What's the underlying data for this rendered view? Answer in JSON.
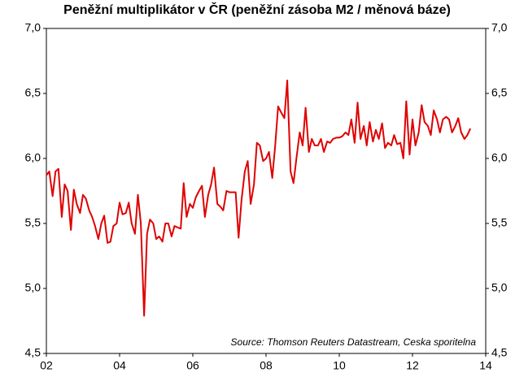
{
  "chart_data": {
    "type": "line",
    "title": "Peněžní multiplikátor v ČR (peněžní zásoba M2 / měnová báze)",
    "annotation": "Source: Thomson Reuters Datastream, Ceska sporitelna",
    "x": [
      2002,
      2002.08,
      2002.17,
      2002.25,
      2002.33,
      2002.42,
      2002.5,
      2002.58,
      2002.67,
      2002.75,
      2002.83,
      2002.92,
      2003,
      2003.08,
      2003.17,
      2003.25,
      2003.33,
      2003.42,
      2003.5,
      2003.58,
      2003.67,
      2003.75,
      2003.83,
      2003.92,
      2004,
      2004.08,
      2004.17,
      2004.25,
      2004.33,
      2004.42,
      2004.5,
      2004.58,
      2004.67,
      2004.75,
      2004.83,
      2004.92,
      2005,
      2005.08,
      2005.17,
      2005.25,
      2005.33,
      2005.42,
      2005.5,
      2005.58,
      2005.67,
      2005.75,
      2005.83,
      2005.92,
      2006,
      2006.08,
      2006.17,
      2006.25,
      2006.33,
      2006.42,
      2006.5,
      2006.58,
      2006.67,
      2006.75,
      2006.83,
      2006.92,
      2007,
      2007.08,
      2007.17,
      2007.25,
      2007.33,
      2007.42,
      2007.5,
      2007.58,
      2007.67,
      2007.75,
      2007.83,
      2007.92,
      2008,
      2008.08,
      2008.17,
      2008.25,
      2008.33,
      2008.42,
      2008.5,
      2008.58,
      2008.67,
      2008.75,
      2008.83,
      2008.92,
      2009,
      2009.08,
      2009.17,
      2009.25,
      2009.33,
      2009.42,
      2009.5,
      2009.58,
      2009.67,
      2009.75,
      2009.83,
      2009.92,
      2010,
      2010.08,
      2010.17,
      2010.25,
      2010.33,
      2010.42,
      2010.5,
      2010.58,
      2010.67,
      2010.75,
      2010.83,
      2010.92,
      2011,
      2011.08,
      2011.17,
      2011.25,
      2011.33,
      2011.42,
      2011.5,
      2011.58,
      2011.67,
      2011.75,
      2011.83,
      2011.92,
      2012,
      2012.08,
      2012.17,
      2012.25,
      2012.33,
      2012.42,
      2012.5,
      2012.58,
      2012.67,
      2012.75,
      2012.83,
      2012.92,
      2013,
      2013.08,
      2013.17,
      2013.25,
      2013.33,
      2013.42,
      2013.5,
      2013.58
    ],
    "series": [
      {
        "color": "#e00000",
        "values": [
          5.87,
          5.9,
          5.71,
          5.9,
          5.92,
          5.55,
          5.8,
          5.75,
          5.45,
          5.76,
          5.65,
          5.58,
          5.72,
          5.69,
          5.6,
          5.55,
          5.48,
          5.38,
          5.5,
          5.56,
          5.35,
          5.36,
          5.48,
          5.5,
          5.66,
          5.57,
          5.58,
          5.66,
          5.5,
          5.42,
          5.72,
          5.5,
          4.79,
          5.42,
          5.53,
          5.5,
          5.38,
          5.4,
          5.36,
          5.5,
          5.5,
          5.4,
          5.48,
          5.47,
          5.46,
          5.81,
          5.55,
          5.65,
          5.62,
          5.7,
          5.75,
          5.79,
          5.55,
          5.72,
          5.8,
          5.93,
          5.65,
          5.63,
          5.6,
          5.75,
          5.74,
          5.74,
          5.74,
          5.39,
          5.68,
          5.9,
          5.98,
          5.65,
          5.8,
          6.12,
          6.1,
          5.98,
          6.0,
          6.05,
          5.85,
          6.1,
          6.4,
          6.35,
          6.31,
          6.6,
          5.9,
          5.81,
          6.0,
          6.2,
          6.1,
          6.39,
          6.05,
          6.15,
          6.1,
          6.1,
          6.15,
          6.05,
          6.13,
          6.12,
          6.15,
          6.16,
          6.16,
          6.17,
          6.2,
          6.18,
          6.3,
          6.12,
          6.43,
          6.15,
          6.25,
          6.1,
          6.28,
          6.13,
          6.22,
          6.15,
          6.27,
          6.08,
          6.12,
          6.1,
          6.18,
          6.11,
          6.12,
          6.0,
          6.44,
          6.03,
          6.3,
          6.1,
          6.2,
          6.41,
          6.28,
          6.25,
          6.18,
          6.37,
          6.3,
          6.2,
          6.3,
          6.32,
          6.3,
          6.2,
          6.25,
          6.31,
          6.2,
          6.15,
          6.18,
          6.23
        ]
      }
    ],
    "xlim": [
      2002,
      2014
    ],
    "xticks": [
      {
        "value": 2002,
        "label": "02"
      },
      {
        "value": 2004,
        "label": "04"
      },
      {
        "value": 2006,
        "label": "06"
      },
      {
        "value": 2008,
        "label": "08"
      },
      {
        "value": 2010,
        "label": "10"
      },
      {
        "value": 2012,
        "label": "12"
      },
      {
        "value": 2014,
        "label": "14"
      }
    ],
    "ylim": [
      4.5,
      7
    ],
    "yticks": [
      {
        "value": 4.5,
        "label": "4,5"
      },
      {
        "value": 5,
        "label": "5,0"
      },
      {
        "value": 5.5,
        "label": "5,5"
      },
      {
        "value": 6,
        "label": "6,0"
      },
      {
        "value": 6.5,
        "label": "6,5"
      },
      {
        "value": 7,
        "label": "7,0"
      }
    ]
  }
}
